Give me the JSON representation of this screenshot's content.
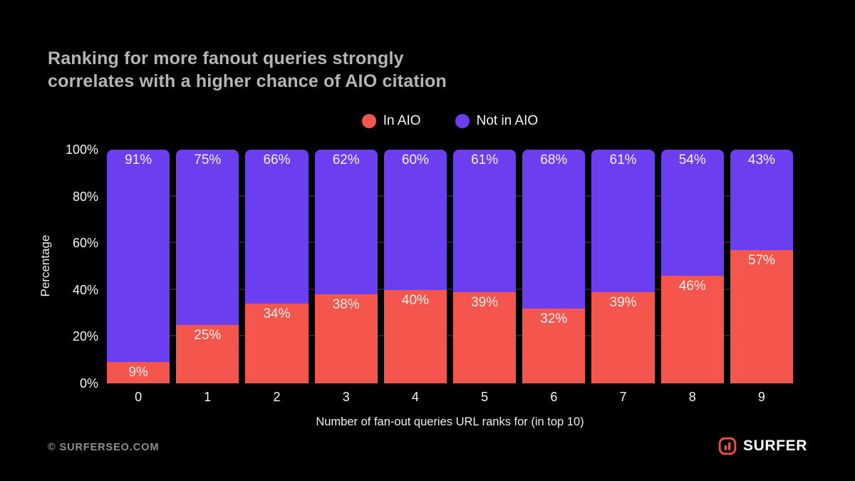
{
  "slide": {
    "title": "Ranking for more fanout queries strongly\ncorrelates with a higher chance of AIO citation",
    "background": "#000000",
    "footer": {
      "copyright": "© SURFERSEO.COM",
      "brand": "SURFER",
      "brand_color": "#F1503F"
    }
  },
  "chart_data": {
    "type": "bar",
    "stacked": true,
    "title": "Ranking for more fanout queries strongly correlates with a higher chance of AIO citation",
    "categories": [
      "0",
      "1",
      "2",
      "3",
      "4",
      "5",
      "6",
      "7",
      "8",
      "9"
    ],
    "series": [
      {
        "name": "In AIO",
        "color": "#F4554D",
        "values": [
          9,
          25,
          34,
          38,
          40,
          39,
          32,
          39,
          46,
          57
        ]
      },
      {
        "name": "Not in AIO",
        "color": "#6B3EF0",
        "values": [
          91,
          75,
          66,
          62,
          60,
          61,
          68,
          61,
          54,
          43
        ]
      }
    ],
    "xlabel": "Number of fan-out queries URL ranks for (in top 10)",
    "ylabel": "Percentage",
    "ylim": [
      0,
      100
    ],
    "yticks": [
      0,
      20,
      40,
      60,
      80,
      100
    ],
    "ytick_suffix": "%",
    "bar_label_suffix": "%",
    "gridlines": [
      20,
      40,
      60,
      80
    ],
    "grid_color": "#242424",
    "legend_position": "top-center"
  }
}
